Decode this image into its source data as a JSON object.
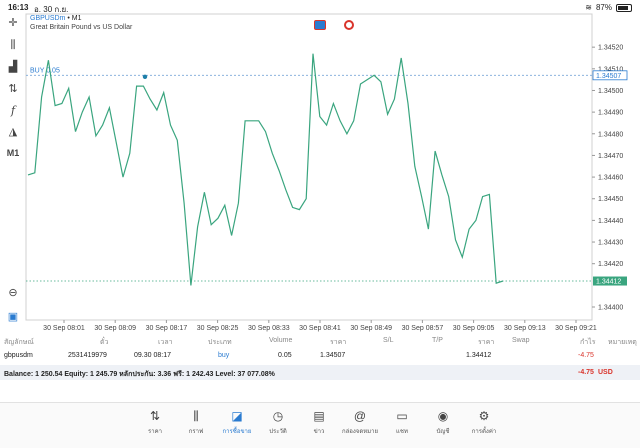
{
  "status_bar": {
    "time": "16:13",
    "date": "อ. 30 ก.ย.",
    "battery": "87%"
  },
  "toolbar": {
    "timeframe_label": "M1"
  },
  "chart_header": {
    "symbol": "GBPUSDm",
    "separator": "•",
    "timeframe": "M1",
    "description": "Great Britain Pound vs US Dollar"
  },
  "chart_data": {
    "type": "line",
    "title": "",
    "xlabel": "",
    "ylabel": "",
    "ylim": [
      1.34394,
      1.34527
    ],
    "y_ticks": [
      "1.34520",
      "1.34510",
      "1.34500",
      "1.34490",
      "1.34480",
      "1.34470",
      "1.34460",
      "1.34450",
      "1.34440",
      "1.34430",
      "1.34420",
      "1.34400"
    ],
    "x_ticks": [
      "30 Sep 08:01",
      "30 Sep 08:09",
      "30 Sep 08:17",
      "30 Sep 08:25",
      "30 Sep 08:33",
      "30 Sep 08:41",
      "30 Sep 08:49",
      "30 Sep 08:57",
      "30 Sep 09:05",
      "30 Sep 09:13",
      "30 Sep 09:21"
    ],
    "order_line": {
      "label": "BUY 0.05",
      "price": "1.34507"
    },
    "current_price": "1.34412",
    "line_color": "#3aa57f",
    "series": [
      {
        "values": [
          1.34461,
          1.34462,
          1.34497,
          1.34514,
          1.34493,
          1.34494,
          1.34501,
          1.34481,
          1.3449,
          1.34497,
          1.34479,
          1.34484,
          1.34492,
          1.34476,
          1.3446,
          1.34471,
          1.34502,
          1.34502,
          1.34496,
          1.34491,
          1.34499,
          1.34484,
          1.34477,
          1.34448,
          1.3441,
          1.34437,
          1.34453,
          1.34438,
          1.34441,
          1.34447,
          1.34433,
          1.34448,
          1.34486,
          1.34486,
          1.34486,
          1.34481,
          1.34471,
          1.34463,
          1.34454,
          1.34446,
          1.34445,
          1.3445,
          1.34517,
          1.34488,
          1.34484,
          1.34494,
          1.34486,
          1.3448,
          1.34486,
          1.34503,
          1.34505,
          1.34507,
          1.34504,
          1.34489,
          1.34496,
          1.34515,
          1.34494,
          1.34465,
          1.34451,
          1.34436,
          1.34472,
          1.34461,
          1.34451,
          1.34431,
          1.34423,
          1.34436,
          1.3444,
          1.34451,
          1.34452,
          1.34411,
          1.34412
        ]
      }
    ]
  },
  "positions": {
    "columns": [
      "สัญลักษณ์",
      "ตั๋ว",
      "เวลา",
      "ประเภท",
      "Volume",
      "ราคา",
      "S/L",
      "T/P",
      "ราคา",
      "Swap",
      "กำไร",
      "หมายเหตุ"
    ],
    "row": {
      "symbol": "gbpusdm",
      "ticket": "2531419979",
      "time": "09.30 08:17",
      "type": "buy",
      "volume": "0.05",
      "price": "1.34507",
      "current_price": "1.34412",
      "profit": "-4.75"
    }
  },
  "balance": {
    "text": "Balance: 1 250.54 Equity: 1 245.79 หลักประกัน: 3.36 ฟรี: 1 242.43 Level: 37 077.08%",
    "profit": "-4.75",
    "currency": "USD"
  },
  "tabs": [
    {
      "label": "ราคา"
    },
    {
      "label": "กราฟ"
    },
    {
      "label": "การซื้อขาย"
    },
    {
      "label": "ประวัติ"
    },
    {
      "label": "ข่าว"
    },
    {
      "label": "กล่องจดหมาย"
    },
    {
      "label": "แชท"
    },
    {
      "label": "บัญชี"
    },
    {
      "label": "การตั้งค่า"
    }
  ],
  "colors": {
    "accent": "#2a7bd0",
    "loss": "#d9342b",
    "price_line": "#3aa57f",
    "order_line": "#2a7bd0"
  }
}
